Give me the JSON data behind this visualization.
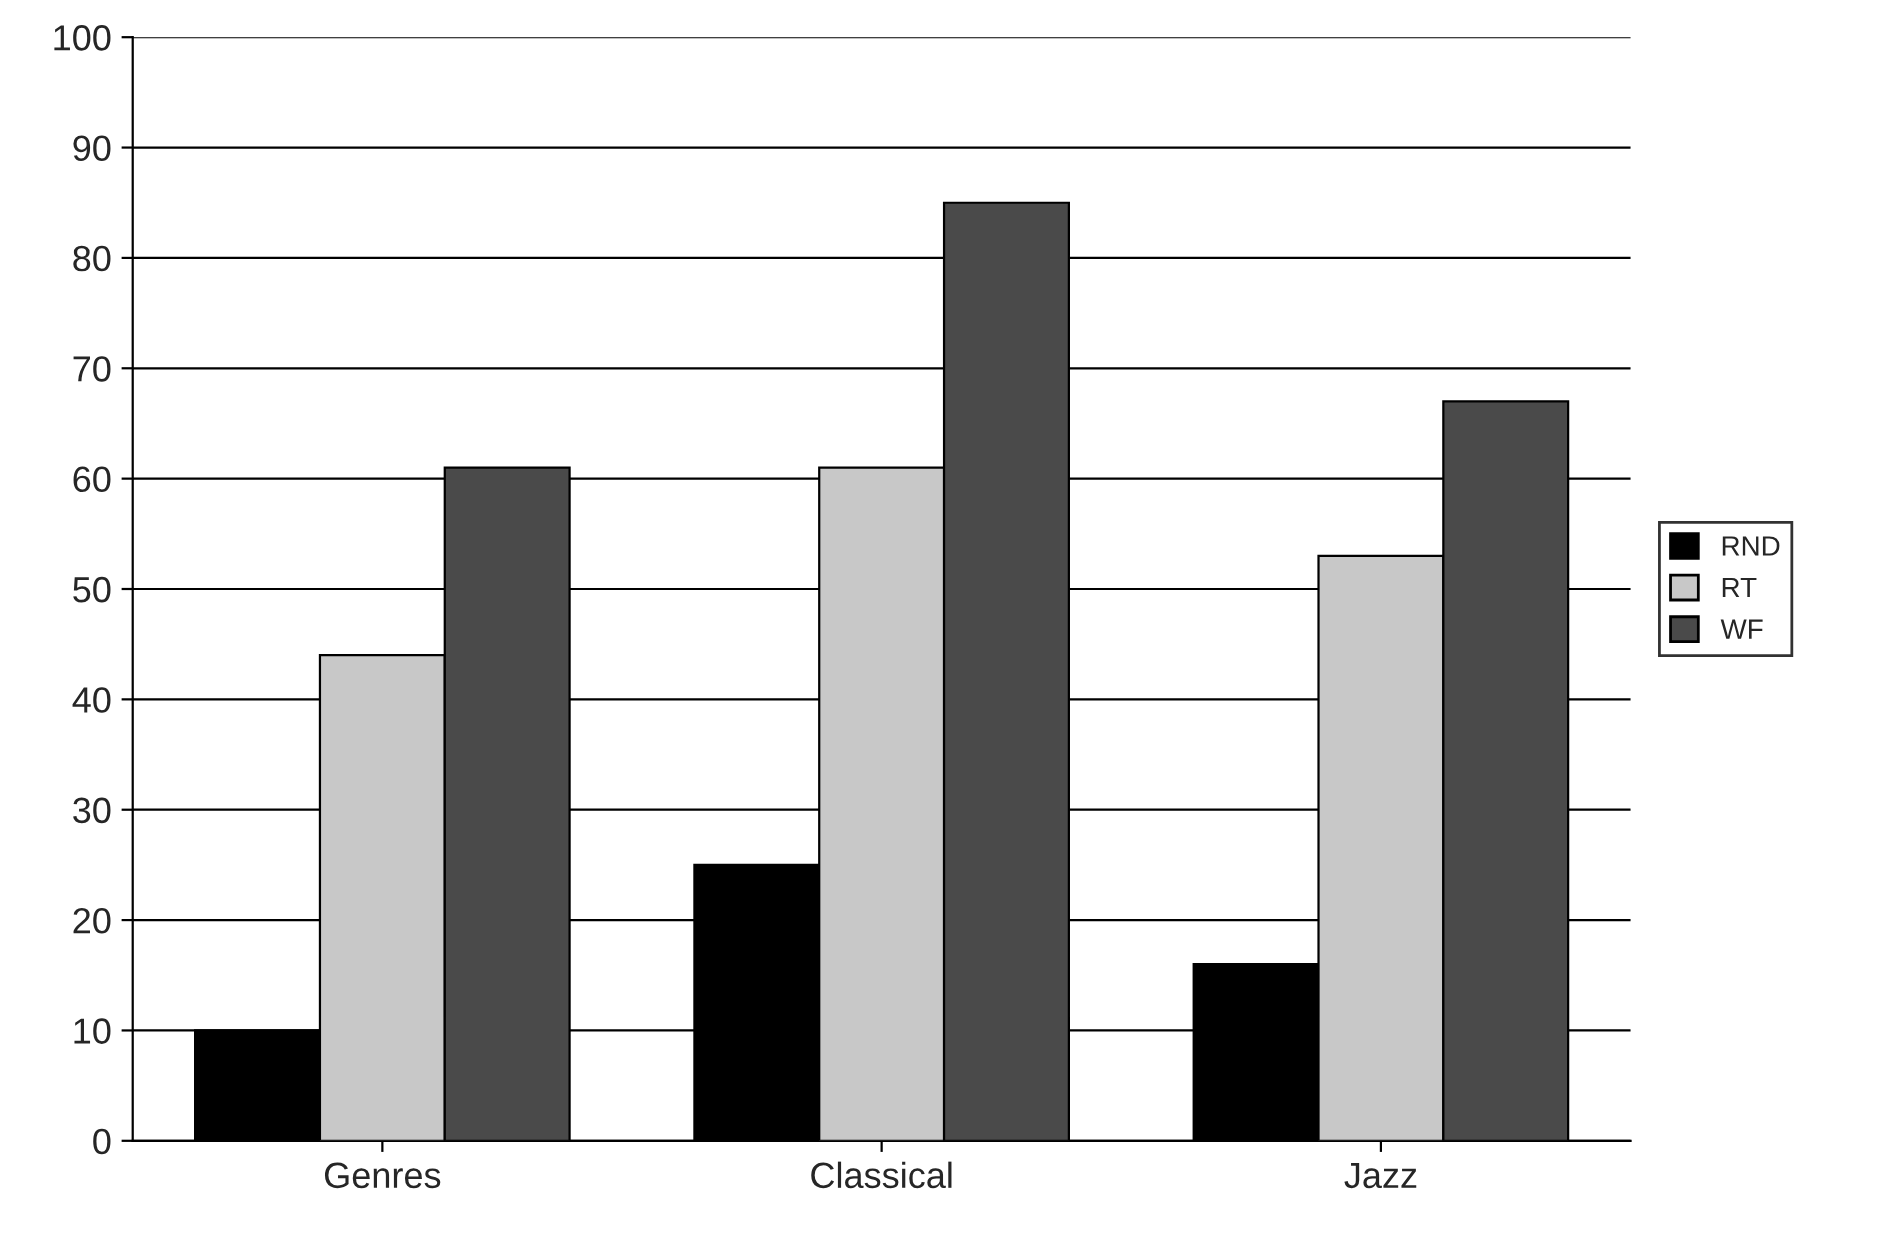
{
  "chart_data": {
    "type": "bar",
    "categories": [
      "Genres",
      "Classical",
      "Jazz"
    ],
    "series": [
      {
        "name": "RND",
        "color": "#000000",
        "values": [
          10,
          25,
          16
        ]
      },
      {
        "name": "RT",
        "color": "#c8c8c8",
        "values": [
          44,
          61,
          53
        ]
      },
      {
        "name": "WF",
        "color": "#4a4a4a",
        "values": [
          61,
          85,
          67
        ]
      }
    ],
    "ylim": [
      0,
      100
    ],
    "yticks": [
      0,
      10,
      20,
      30,
      40,
      50,
      60,
      70,
      80,
      90,
      100
    ],
    "grid": "y",
    "legend": "right"
  }
}
